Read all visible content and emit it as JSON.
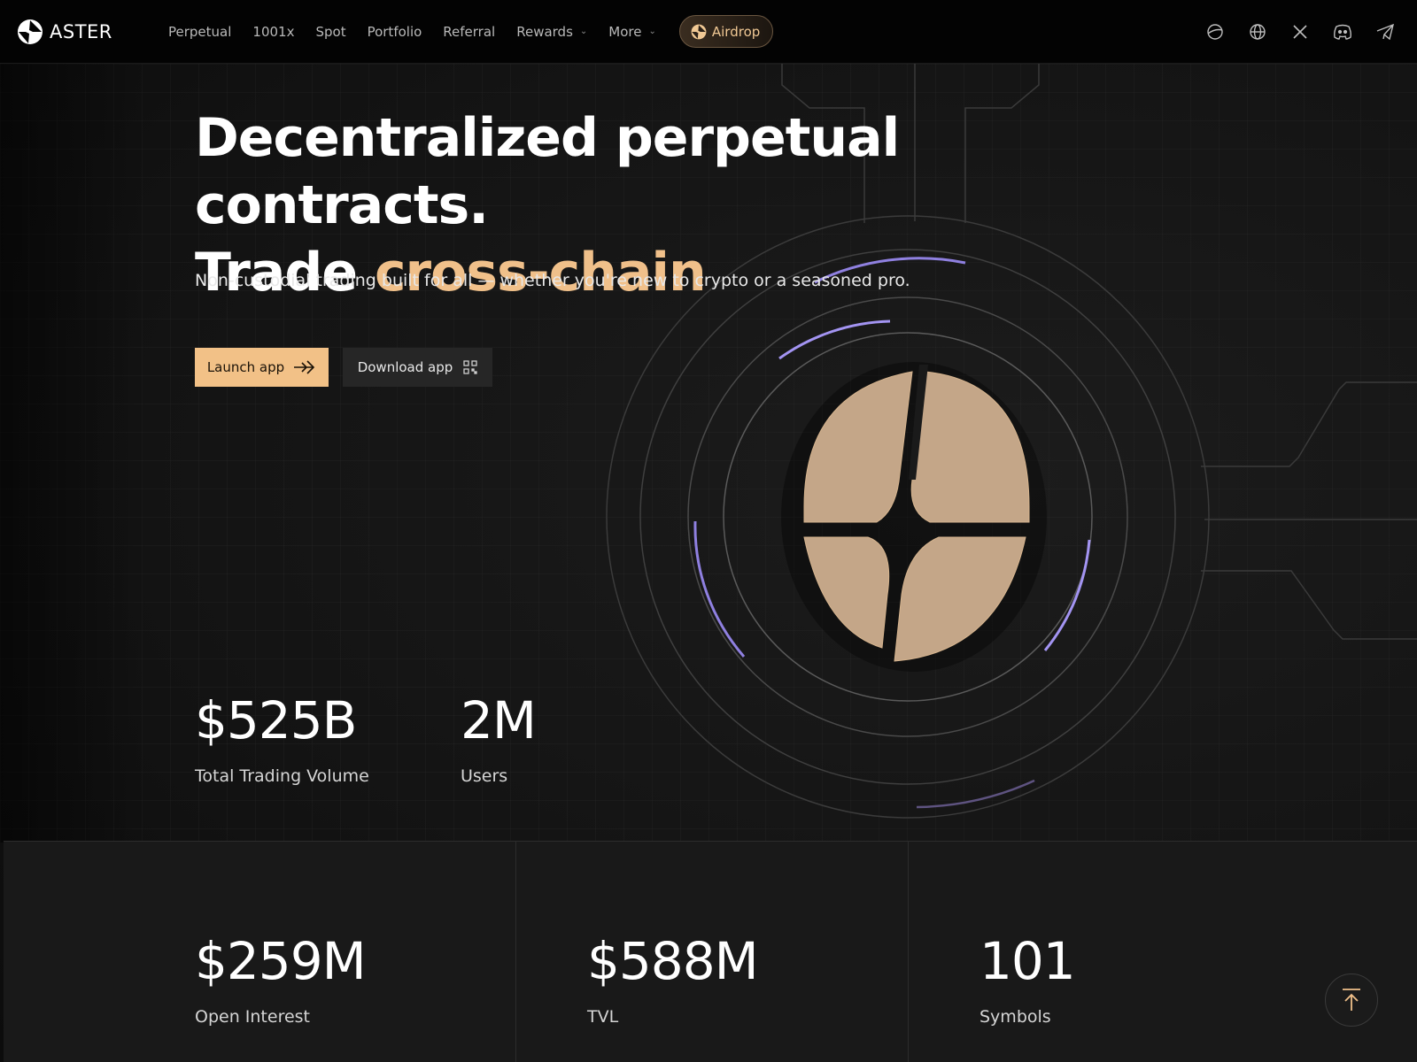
{
  "brand": {
    "name": "ASTER"
  },
  "nav": {
    "links": [
      {
        "label": "Perpetual"
      },
      {
        "label": "1001x"
      },
      {
        "label": "Spot"
      },
      {
        "label": "Portfolio"
      },
      {
        "label": "Referral"
      },
      {
        "label": "Rewards",
        "has_dropdown": true
      },
      {
        "label": "More",
        "has_dropdown": true
      }
    ],
    "airdrop_label": "Airdrop",
    "icons": [
      "planet-icon",
      "globe-icon",
      "x-icon",
      "discord-icon",
      "telegram-icon"
    ]
  },
  "hero": {
    "title_line1": "Decentralized perpetual contracts.",
    "title_line2_prefix": "Trade ",
    "title_line2_accent": "cross-chain",
    "subtitle": "Non-custodial trading built for all — whether you're new to crypto or a seasoned pro.",
    "launch_label": "Launch app",
    "download_label": "Download app"
  },
  "stats_top": [
    {
      "value": "$525B",
      "label": "Total Trading Volume"
    },
    {
      "value": "2M",
      "label": "Users"
    }
  ],
  "stats_bottom": [
    {
      "value": "$259M",
      "label": "Open Interest"
    },
    {
      "value": "$588M",
      "label": "TVL"
    },
    {
      "value": "101",
      "label": "Symbols"
    }
  ],
  "colors": {
    "accent": "#f0c08a",
    "button": "#f2c187",
    "background": "#111111",
    "orb_ring": "#9b8cf0",
    "logo": "#c4a688"
  }
}
